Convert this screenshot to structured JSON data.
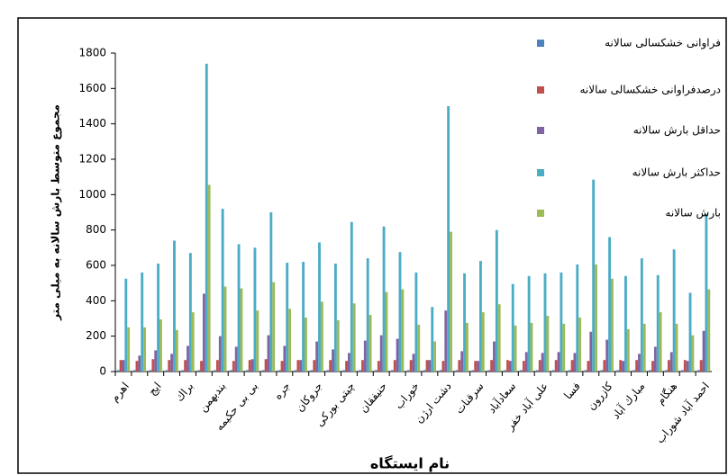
{
  "chart_data": {
    "type": "bar",
    "x_label": "نام ایستگاه",
    "y_label": "مجموع متوسط بارش سالانه به میلی متر",
    "categories": [
      "اهرم",
      null,
      "ایج",
      null,
      "براك",
      null,
      "بندبهمن",
      null,
      "بی بی حکیمه",
      null,
      "جره",
      null,
      "جروکان",
      null,
      "چیتی بورکی",
      null,
      "حنیفقان",
      null,
      "خوراب",
      null,
      "دشت ارژن",
      null,
      "سرقنات",
      null,
      "سعادآباد",
      null,
      "علی آباد خفر",
      null,
      "فسا",
      null,
      "کازرون",
      null,
      "مبارك آباد",
      null,
      "هنگام",
      null,
      "احمد آباد شوراب"
    ],
    "series": [
      {
        "name": "فراوانی خشکسالی سالانه",
        "color": "#4f81bd",
        "values": [
          8,
          8,
          8,
          8,
          8,
          8,
          8,
          8,
          8,
          8,
          8,
          8,
          8,
          8,
          8,
          8,
          8,
          8,
          8,
          8,
          8,
          8,
          8,
          8,
          8,
          8,
          8,
          8,
          8,
          8,
          8,
          8,
          8,
          8,
          8,
          8,
          8
        ]
      },
      {
        "name": "درصدفراوانی خشکسالی سالانه",
        "color": "#c0504d",
        "values": [
          65,
          60,
          70,
          65,
          65,
          60,
          65,
          60,
          65,
          70,
          60,
          65,
          65,
          65,
          60,
          65,
          60,
          65,
          65,
          65,
          60,
          65,
          60,
          65,
          65,
          60,
          65,
          65,
          65,
          60,
          65,
          65,
          65,
          60,
          65,
          65,
          65
        ]
      },
      {
        "name": "حداقل بارش سالانه",
        "color": "#8064a2",
        "values": [
          65,
          90,
          120,
          100,
          145,
          440,
          200,
          140,
          70,
          205,
          145,
          65,
          170,
          125,
          105,
          175,
          205,
          185,
          100,
          65,
          345,
          115,
          60,
          170,
          60,
          110,
          105,
          110,
          105,
          225,
          180,
          60,
          100,
          140,
          110,
          60,
          230
        ]
      },
      {
        "name": "حداکثر بارش سالانه",
        "color": "#4bacc6",
        "values": [
          525,
          560,
          610,
          740,
          670,
          1740,
          920,
          720,
          700,
          900,
          615,
          620,
          730,
          610,
          845,
          640,
          820,
          675,
          560,
          365,
          1500,
          555,
          625,
          800,
          495,
          540,
          555,
          560,
          605,
          1085,
          760,
          540,
          640,
          545,
          690,
          445,
          890
        ]
      },
      {
        "name": "بارش سالانه",
        "color": "#9bbb59",
        "values": [
          250,
          250,
          295,
          235,
          335,
          1055,
          480,
          470,
          345,
          505,
          355,
          305,
          395,
          290,
          385,
          320,
          450,
          465,
          265,
          170,
          790,
          275,
          335,
          380,
          260,
          275,
          315,
          270,
          305,
          605,
          525,
          240,
          270,
          335,
          270,
          205,
          465
        ]
      }
    ],
    "ylim": [
      0,
      1800
    ],
    "yticks": [
      0,
      200,
      400,
      600,
      800,
      1000,
      1200,
      1400,
      1600,
      1800
    ],
    "legend": "right"
  }
}
